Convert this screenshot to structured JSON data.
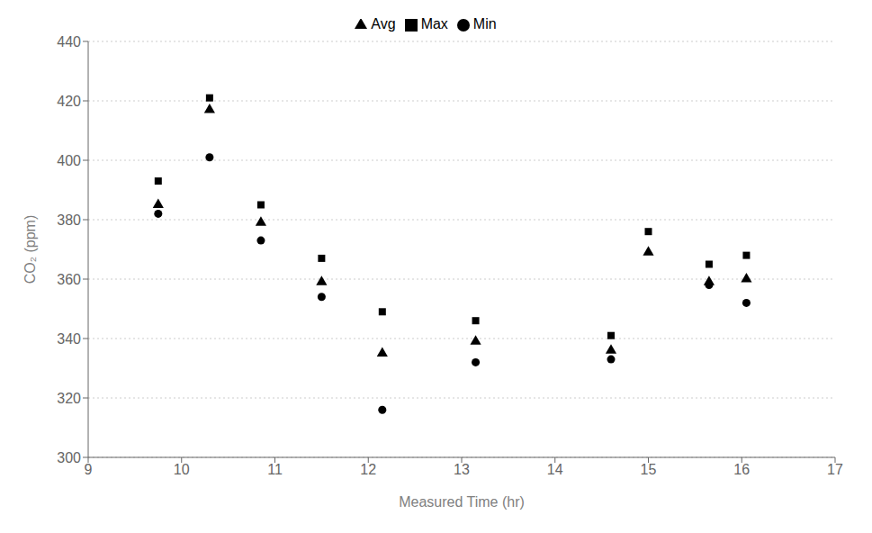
{
  "chart_data": {
    "type": "scatter",
    "xlabel": "Measured Time (hr)",
    "ylabel": "CO₂ (ppm)",
    "x": [
      9.75,
      10.3,
      10.85,
      11.5,
      12.15,
      13.15,
      14.6,
      15.0,
      15.65,
      16.05
    ],
    "series": [
      {
        "name": "Max",
        "color": "black",
        "marker": "square",
        "values": [
          393,
          421,
          385,
          367,
          349,
          346,
          341,
          376,
          365,
          368
        ]
      },
      {
        "name": "Avg",
        "color": "black",
        "marker": "triangle",
        "values": [
          385,
          417,
          379,
          359,
          335,
          339,
          336,
          369,
          359,
          360
        ]
      },
      {
        "name": "Min",
        "color": "black",
        "marker": "circle",
        "values": [
          382,
          401,
          373,
          354,
          316,
          332,
          333,
          null,
          358,
          352
        ]
      }
    ],
    "xlim": [
      9,
      17
    ],
    "ylim": [
      300,
      440
    ],
    "xticks": [
      9,
      10,
      11,
      12,
      13,
      14,
      15,
      16,
      17
    ],
    "yticks": [
      300,
      320,
      340,
      360,
      380,
      400,
      420,
      440
    ],
    "grid": "y",
    "legend": "top"
  }
}
